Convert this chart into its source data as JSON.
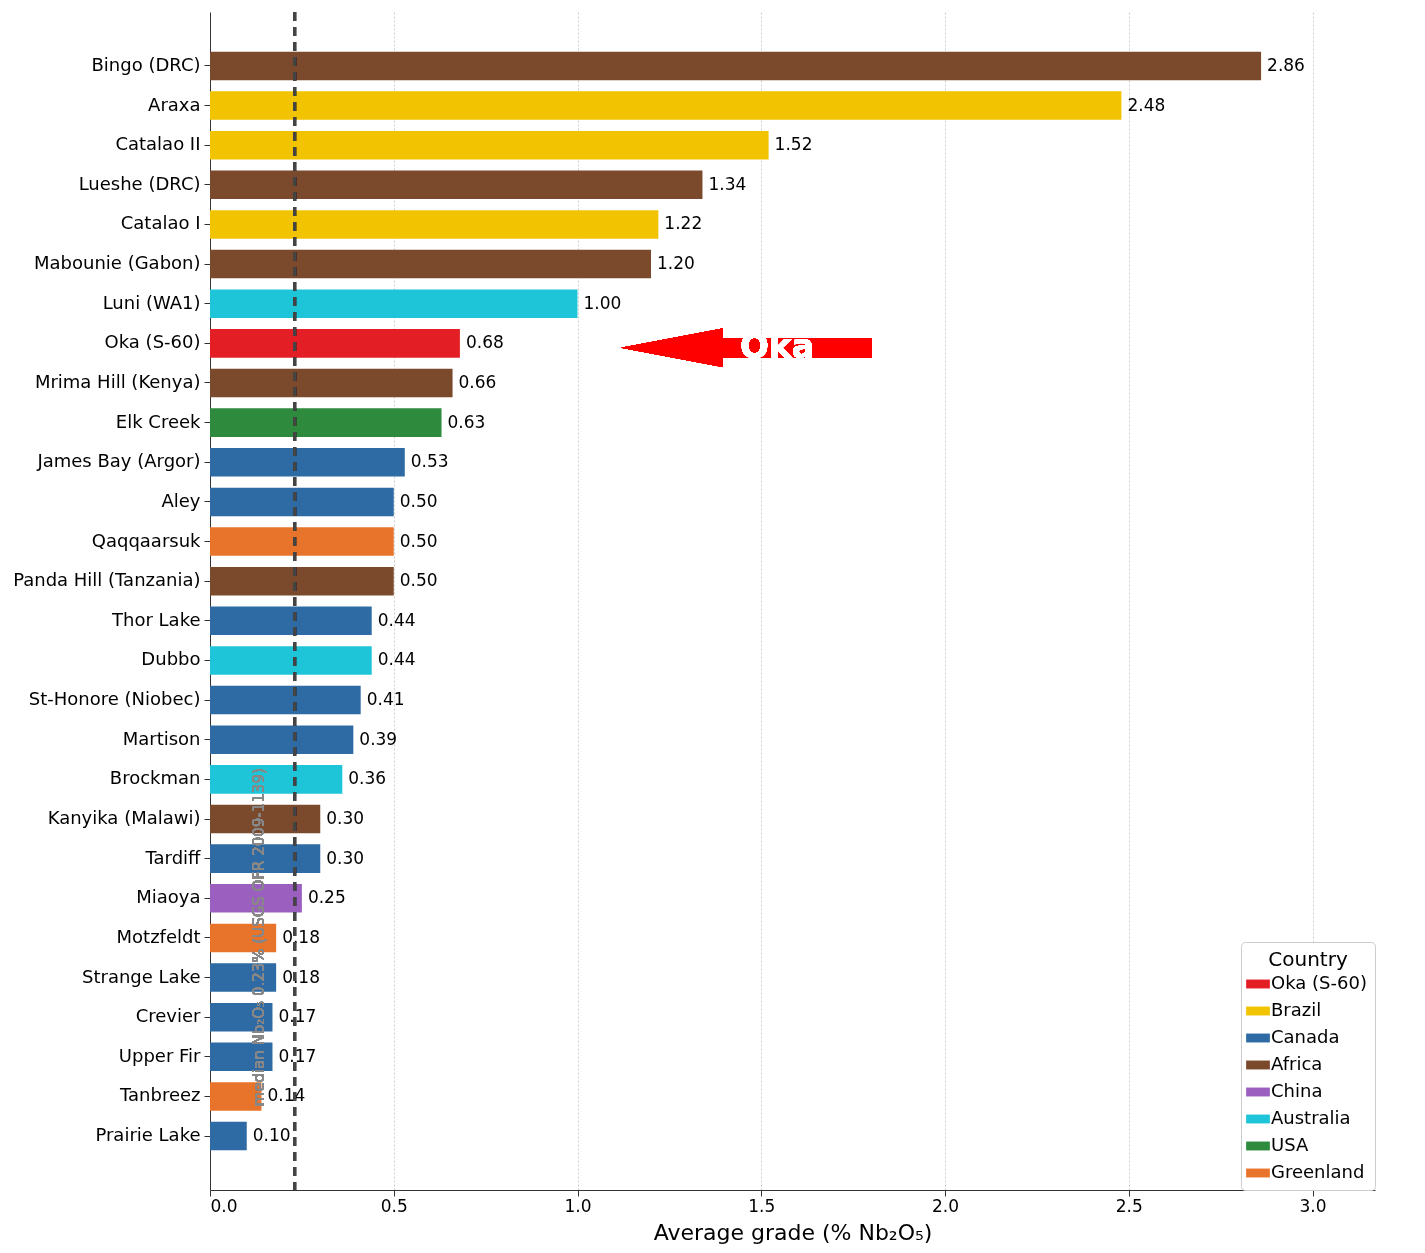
{
  "chart_data": {
    "type": "bar",
    "orientation": "horizontal",
    "xlabel": "Average grade (% Nb₂O₅)",
    "legend_title": "Country",
    "categories": [
      "Bingo (DRC)",
      "Araxa",
      "Catalao II",
      "Lueshe (DRC)",
      "Catalao I",
      "Mabounie (Gabon)",
      "Luni (WA1)",
      "Oka (S-60)",
      "Mrima Hill (Kenya)",
      "Elk Creek",
      "James Bay (Argor)",
      "Aley",
      "Qaqqaarsuk",
      "Panda Hill (Tanzania)",
      "Thor Lake",
      "Dubbo",
      "St-Honore (Niobec)",
      "Martison",
      "Brockman",
      "Kanyika (Malawi)",
      "Tardiff",
      "Miaoya",
      "Motzfeldt",
      "Strange Lake",
      "Crevier",
      "Upper Fir",
      "Tanbreez",
      "Prairie Lake"
    ],
    "series": [
      {
        "name": "Oka (S-60)",
        "color": "#e31e25",
        "values": [
          null,
          null,
          null,
          null,
          null,
          null,
          null,
          0.68,
          null,
          null,
          null,
          null,
          null,
          null,
          null,
          null,
          null,
          null,
          null,
          null,
          null,
          null,
          null,
          null,
          null,
          null,
          null,
          null
        ]
      },
      {
        "name": "Brazil",
        "color": "#f2c300",
        "values": [
          null,
          2.48,
          1.52,
          null,
          1.22,
          null,
          null,
          null,
          null,
          null,
          null,
          null,
          null,
          null,
          null,
          null,
          null,
          null,
          null,
          null,
          null,
          null,
          null,
          null,
          null,
          null,
          null,
          null
        ]
      },
      {
        "name": "Canada",
        "color": "#2e6aa3",
        "values": [
          null,
          null,
          null,
          null,
          null,
          null,
          null,
          null,
          null,
          null,
          0.53,
          0.5,
          null,
          null,
          0.44,
          null,
          0.41,
          0.39,
          null,
          null,
          0.3,
          null,
          null,
          0.18,
          0.17,
          0.17,
          null,
          0.1
        ]
      },
      {
        "name": "Africa",
        "color": "#7b4a2d",
        "values": [
          2.86,
          null,
          null,
          1.34,
          null,
          1.2,
          null,
          null,
          0.66,
          null,
          null,
          null,
          null,
          0.5,
          null,
          null,
          null,
          null,
          null,
          0.3,
          null,
          null,
          null,
          null,
          null,
          null,
          null,
          null
        ]
      },
      {
        "name": "China",
        "color": "#9b5fc0",
        "values": [
          null,
          null,
          null,
          null,
          null,
          null,
          null,
          null,
          null,
          null,
          null,
          null,
          null,
          null,
          null,
          null,
          null,
          null,
          null,
          null,
          null,
          0.25,
          null,
          null,
          null,
          null,
          null,
          null
        ]
      },
      {
        "name": "Australia",
        "color": "#1ec4d8",
        "values": [
          null,
          null,
          null,
          null,
          null,
          null,
          1.0,
          null,
          null,
          null,
          null,
          null,
          null,
          null,
          null,
          0.44,
          null,
          null,
          0.36,
          null,
          null,
          null,
          null,
          null,
          null,
          null,
          null,
          null
        ]
      },
      {
        "name": "USA",
        "color": "#2e8b3e",
        "values": [
          null,
          null,
          null,
          null,
          null,
          null,
          null,
          null,
          null,
          0.63,
          null,
          null,
          null,
          null,
          null,
          null,
          null,
          null,
          null,
          null,
          null,
          null,
          null,
          null,
          null,
          null,
          null,
          null
        ]
      },
      {
        "name": "Greenland",
        "color": "#e8732a",
        "values": [
          null,
          null,
          null,
          null,
          null,
          null,
          null,
          null,
          null,
          null,
          null,
          null,
          0.5,
          null,
          null,
          null,
          null,
          null,
          null,
          null,
          null,
          null,
          0.18,
          null,
          null,
          null,
          0.14,
          null
        ]
      }
    ],
    "xlim": [
      0,
      3.17
    ],
    "xticks": [
      {
        "value": 0,
        "label": "0.0"
      },
      0.5,
      {
        "value": 1,
        "label": "1.0"
      },
      1.5,
      {
        "value": 2,
        "label": "2.0"
      },
      2.5,
      {
        "value": 3,
        "label": "3.0"
      }
    ],
    "grid": "x",
    "legend": "bottom right",
    "value_labels": [
      "2.86",
      "2.48",
      "1.52",
      "1.34",
      "1.22",
      "1.20",
      "1.00",
      "0.68",
      "0.66",
      "0.63",
      "0.53",
      "0.50",
      "0.50",
      "0.50",
      "0.44",
      "0.44",
      "0.41",
      "0.39",
      "0.36",
      "0.30",
      "0.30",
      "0.25",
      "0.18",
      "0.18",
      "0.17",
      "0.17",
      "0.14",
      "0.10"
    ],
    "ref_lines": [
      {
        "axis": "x",
        "value": 0.23,
        "label": "median Nb₂O₅ 0.23% (USGS OFR 2009-1139)",
        "color": "#444444",
        "line_style": "dashed"
      }
    ],
    "annotations": [
      "Oka"
    ]
  }
}
